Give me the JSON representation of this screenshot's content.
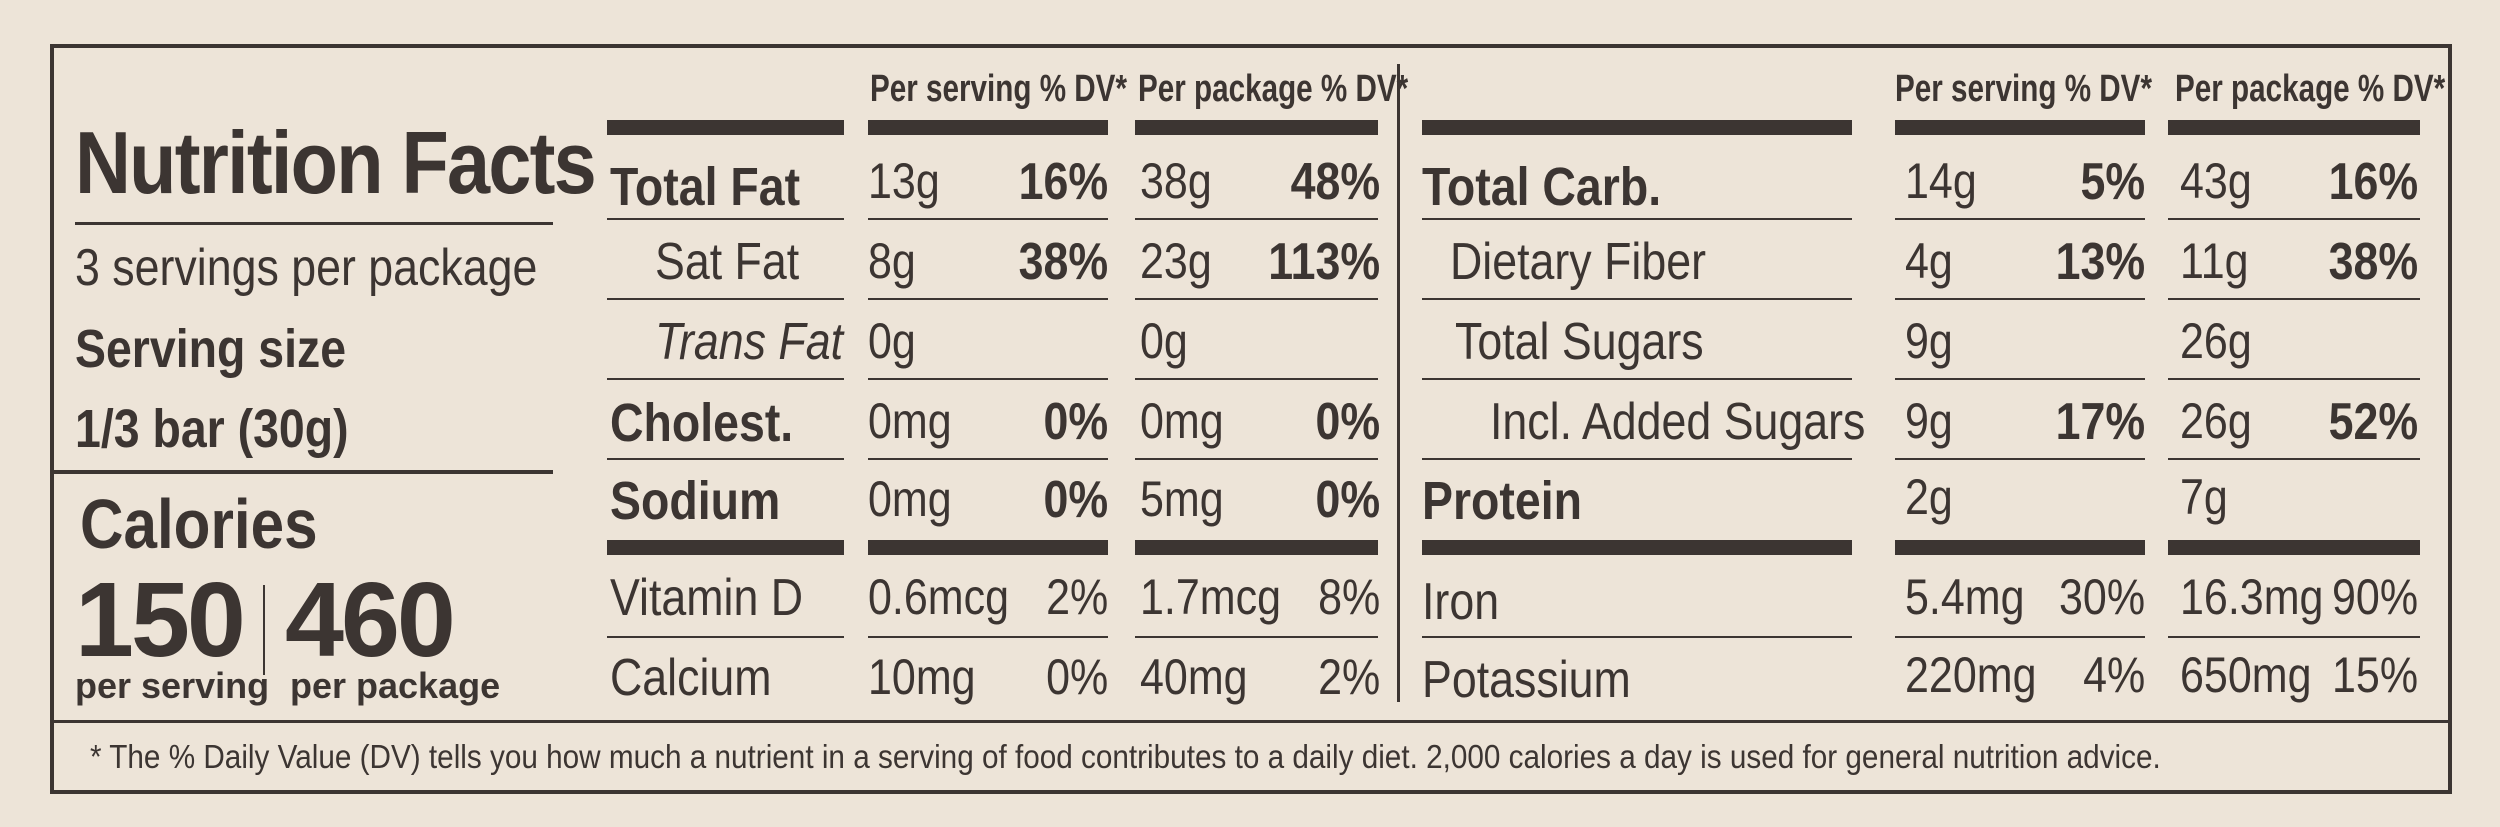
{
  "title": "Nutrition Facts",
  "servings_per_package": "3 servings per package",
  "serving_size_label": "Serving size",
  "serving_size_value": "1/3 bar (30g)",
  "calories_label": "Calories",
  "calories_per_serving": "150",
  "calories_per_serving_label": "per serving",
  "calories_per_package": "460",
  "calories_per_package_label": "per package",
  "headers": {
    "per_serving": "Per serving % DV*",
    "per_package": "Per package % DV*"
  },
  "left_rows": [
    {
      "name": "Total Fat",
      "serv": "13g",
      "serv_dv": "16%",
      "pkg": "38g",
      "pkg_dv": "48%"
    },
    {
      "name": "Sat Fat",
      "serv": "8g",
      "serv_dv": "38%",
      "pkg": "23g",
      "pkg_dv": "113%"
    },
    {
      "name": "Trans Fat",
      "serv": "0g",
      "serv_dv": "",
      "pkg": "0g",
      "pkg_dv": ""
    },
    {
      "name": "Cholest.",
      "serv": "0mg",
      "serv_dv": "0%",
      "pkg": "0mg",
      "pkg_dv": "0%"
    },
    {
      "name": "Sodium",
      "serv": "0mg",
      "serv_dv": "0%",
      "pkg": "5mg",
      "pkg_dv": "0%"
    },
    {
      "name": "Vitamin D",
      "serv": "0.6mcg",
      "serv_dv": "2%",
      "pkg": "1.7mcg",
      "pkg_dv": "8%"
    },
    {
      "name": "Calcium",
      "serv": "10mg",
      "serv_dv": "0%",
      "pkg": "40mg",
      "pkg_dv": "2%"
    }
  ],
  "right_rows": [
    {
      "name": "Total Carb.",
      "serv": "14g",
      "serv_dv": "5%",
      "pkg": "43g",
      "pkg_dv": "16%"
    },
    {
      "name": "Dietary Fiber",
      "serv": "4g",
      "serv_dv": "13%",
      "pkg": "11g",
      "pkg_dv": "38%"
    },
    {
      "name": "Total Sugars",
      "serv": "9g",
      "serv_dv": "",
      "pkg": "26g",
      "pkg_dv": ""
    },
    {
      "name": "Incl. Added Sugars",
      "serv": "9g",
      "serv_dv": "17%",
      "pkg": "26g",
      "pkg_dv": "52%"
    },
    {
      "name": "Protein",
      "serv": "2g",
      "serv_dv": "",
      "pkg": "7g",
      "pkg_dv": ""
    },
    {
      "name": "Iron",
      "serv": "5.4mg",
      "serv_dv": "30%",
      "pkg": "16.3mg",
      "pkg_dv": "90%"
    },
    {
      "name": "Potassium",
      "serv": "220mg",
      "serv_dv": "4%",
      "pkg": "650mg",
      "pkg_dv": "15%"
    }
  ],
  "footnote": "* The % Daily Value (DV) tells you how much a nutrient in a serving of food contributes to a daily diet. 2,000 calories a day is used for general nutrition advice."
}
